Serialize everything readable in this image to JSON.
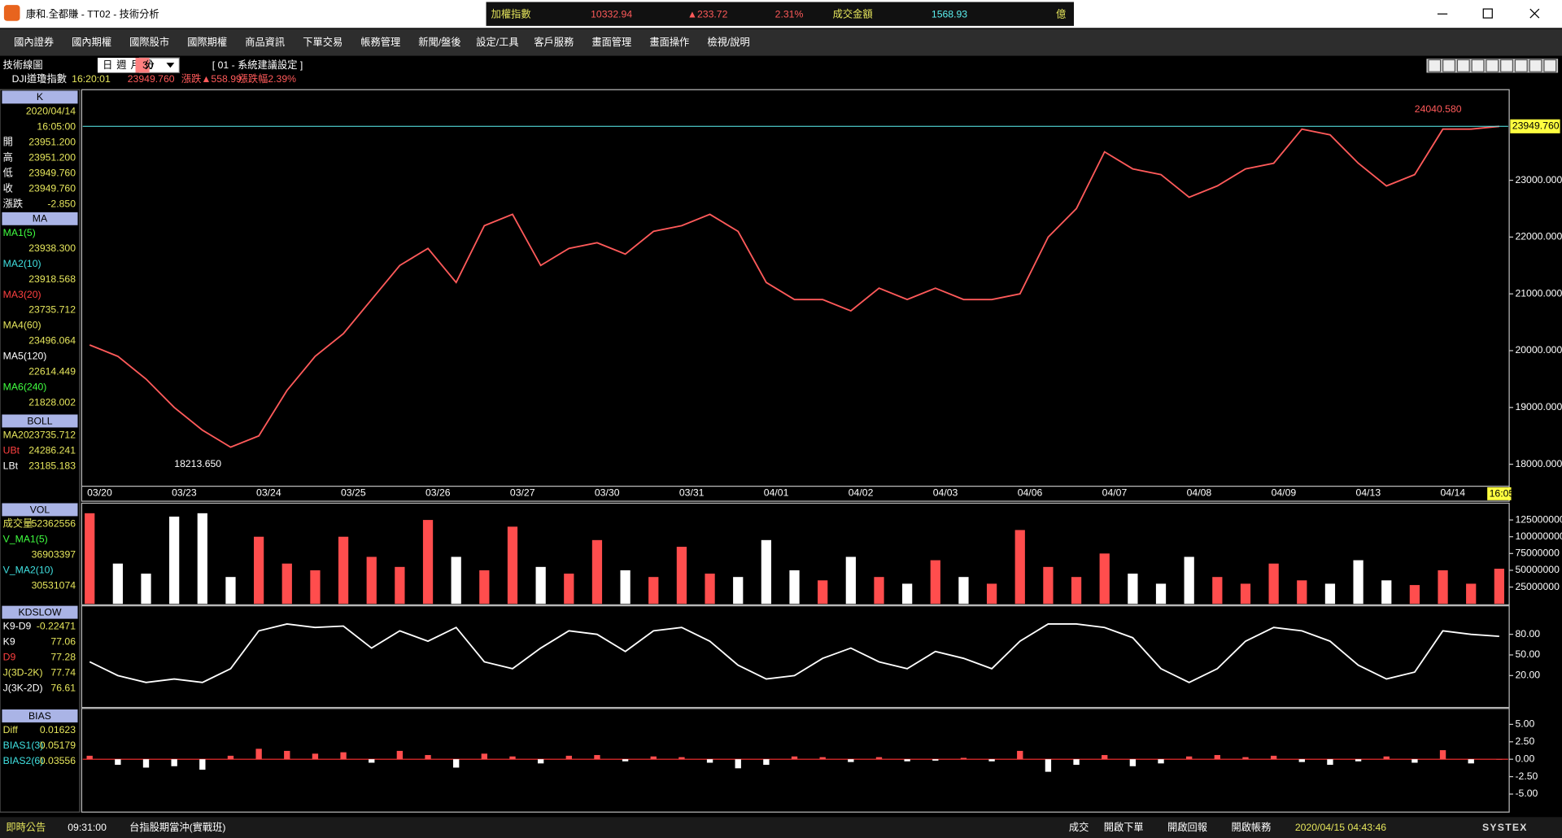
{
  "window": {
    "title": "康和.全都賺 - TT02 - 技術分析"
  },
  "ticker": {
    "name": "加權指數",
    "price": "10332.94",
    "change": "▲233.72",
    "pct": "2.31%",
    "turnover_label": "成交金額",
    "turnover": "1568.93",
    "unit": "億"
  },
  "menu": [
    "國內證券",
    "國內期權",
    "國際股市",
    "國際期權",
    "商品資訊",
    "下單交易",
    "帳務管理",
    "新聞/盤後",
    "設定/工具",
    "客戶服務",
    "畫面管理",
    "畫面操作",
    "檢視/說明"
  ],
  "toolbar": {
    "label": "技術線圖",
    "periods": [
      "日",
      "週",
      "月",
      "分"
    ],
    "interval": "30",
    "setting": "[ 01 - 系統建議設定 ]"
  },
  "quote": {
    "symbol": "DJI",
    "name": "道瓊指數",
    "time": "16:20:01",
    "price": "23949.760",
    "change": "漲跌▲558.99",
    "pct": "漲跌幅2.39%"
  },
  "sidebar": [
    {
      "title": "K",
      "rows": [
        {
          "value": "2020/04/14"
        },
        {
          "value": "16:05:00"
        },
        {
          "label": "開",
          "value": "23951.200"
        },
        {
          "label": "高",
          "value": "23951.200"
        },
        {
          "label": "低",
          "value": "23949.760"
        },
        {
          "label": "收",
          "value": "23949.760"
        },
        {
          "label": "漲跌",
          "value": "-2.850"
        }
      ]
    },
    {
      "title": "MA",
      "rows": [
        {
          "label": "MA1(5)",
          "value": "23938.300"
        },
        {
          "label": "MA2(10)",
          "value": "23918.568"
        },
        {
          "label": "MA3(20)",
          "value": "23735.712"
        },
        {
          "label": "MA4(60)",
          "value": "23496.064"
        },
        {
          "label": "MA5(120)",
          "value": "22614.449"
        },
        {
          "label": "MA6(240)",
          "value": "21828.002"
        }
      ]
    },
    {
      "title": "BOLL",
      "rows": [
        {
          "label": "MA20",
          "value": "23735.712"
        },
        {
          "label": "UBt",
          "value": "24286.241"
        },
        {
          "label": "LBt",
          "value": "23185.183"
        }
      ]
    },
    {
      "title": "VOL",
      "rows": [
        {
          "label": "成交量",
          "value": "52362556"
        },
        {
          "label": "V_MA1(5)",
          "value": "36903397"
        },
        {
          "label": "V_MA2(10)",
          "value": "30531074"
        }
      ]
    },
    {
      "title": "KDSLOW",
      "rows": [
        {
          "label": "K9-D9",
          "value": "-0.22471"
        },
        {
          "label": "K9",
          "value": "77.06"
        },
        {
          "label": "D9",
          "value": "77.28"
        },
        {
          "label": "J(3D-2K)",
          "value": "77.74"
        },
        {
          "label": "J(3K-2D)",
          "value": "76.61"
        }
      ]
    },
    {
      "title": "BIAS",
      "rows": [
        {
          "label": "Diff",
          "value": "0.01623"
        },
        {
          "label": "BIAS1(3)",
          "value": "0.05179"
        },
        {
          "label": "BIAS2(6)",
          "value": "0.03556"
        }
      ]
    }
  ],
  "status": {
    "left": [
      "即時公告",
      "09:31:00",
      "台指股期當沖(實戰班)"
    ],
    "right": [
      "成交",
      "開啟下單",
      "開啟回報",
      "開啟帳務"
    ],
    "datetime": "2020/04/15 04:43:46",
    "brand": "SYSTEX"
  },
  "chart_data": [
    {
      "type": "line",
      "color": "#ff5a5a",
      "categories": [
        "03/20",
        null,
        null,
        "03/23",
        null,
        null,
        "03/24",
        null,
        null,
        "03/25",
        null,
        null,
        "03/26",
        null,
        null,
        "03/27",
        null,
        null,
        "03/30",
        null,
        null,
        "03/31",
        null,
        null,
        "04/01",
        null,
        null,
        "04/02",
        null,
        null,
        "04/03",
        null,
        null,
        "04/06",
        null,
        null,
        "04/07",
        null,
        null,
        "04/08",
        null,
        null,
        "04/09",
        null,
        null,
        "04/13",
        null,
        null,
        "04/14",
        null,
        null
      ],
      "values": [
        20100,
        19900,
        19500,
        19000,
        18600,
        18300,
        18500,
        19300,
        19900,
        20300,
        20900,
        21500,
        21800,
        21200,
        22200,
        22400,
        21500,
        21800,
        21900,
        21700,
        22100,
        22200,
        22400,
        22100,
        21200,
        20900,
        20900,
        20700,
        21100,
        20900,
        21100,
        20900,
        20900,
        21000,
        22000,
        22500,
        23500,
        23200,
        23100,
        22700,
        22900,
        23200,
        23300,
        23900,
        23800,
        23300,
        22900,
        23100,
        23900,
        23900,
        23949.76
      ],
      "ylim": [
        17630,
        24560
      ],
      "yticks": [
        {
          "value": 18000,
          "label": "18000.000"
        },
        {
          "value": 19000,
          "label": "19000.000"
        },
        {
          "value": 20000,
          "label": "20000.000"
        },
        {
          "value": 21000,
          "label": "21000.000"
        },
        {
          "value": 22000,
          "label": "22000.000"
        },
        {
          "value": 23000,
          "label": "23000.000"
        }
      ],
      "high_label": "24040.580",
      "low_label": "18213.650",
      "last_label": "23949.760",
      "time_label": "16:05"
    },
    {
      "type": "bar",
      "values": [
        135000000,
        60000000,
        45000000,
        130000000,
        135000000,
        40000000,
        100000000,
        60000000,
        50000000,
        100000000,
        70000000,
        55000000,
        125000000,
        70000000,
        50000000,
        115000000,
        55000000,
        45000000,
        95000000,
        50000000,
        40000000,
        85000000,
        45000000,
        40000000,
        95000000,
        50000000,
        35000000,
        70000000,
        40000000,
        30000000,
        65000000,
        40000000,
        30000000,
        110000000,
        55000000,
        40000000,
        75000000,
        45000000,
        30000000,
        70000000,
        40000000,
        30000000,
        60000000,
        35000000,
        30000000,
        65000000,
        35000000,
        28000000,
        50000000,
        30000000,
        52362556
      ],
      "ylim": [
        0,
        147000000
      ],
      "yticks": [
        25000000,
        50000000,
        75000000,
        100000000,
        125000000
      ]
    },
    {
      "type": "line",
      "color": "#ffffff",
      "values": [
        40,
        20,
        10,
        15,
        10,
        30,
        85,
        95,
        90,
        92,
        60,
        85,
        70,
        90,
        40,
        30,
        60,
        85,
        80,
        55,
        85,
        90,
        70,
        35,
        15,
        20,
        45,
        60,
        40,
        30,
        55,
        45,
        30,
        70,
        95,
        95,
        90,
        75,
        30,
        10,
        30,
        70,
        90,
        85,
        70,
        35,
        15,
        25,
        85,
        80,
        77.06
      ],
      "ylim": [
        -25,
        120
      ],
      "yticks": [
        {
          "value": 20,
          "label": "20.00"
        },
        {
          "value": 50,
          "label": "50.00"
        },
        {
          "value": 80,
          "label": "80.00"
        }
      ]
    },
    {
      "type": "bar",
      "zero_line": true,
      "values": [
        0.5,
        -0.8,
        -1.2,
        -1.0,
        -1.5,
        0.5,
        1.5,
        1.2,
        0.8,
        1.0,
        -0.5,
        1.2,
        0.6,
        -1.2,
        0.8,
        0.4,
        -0.6,
        0.5,
        0.6,
        -0.3,
        0.4,
        0.3,
        -0.5,
        -1.3,
        -0.8,
        0.4,
        0.3,
        -0.4,
        0.3,
        -0.3,
        -0.2,
        0.2,
        -0.3,
        1.2,
        -1.8,
        -0.8,
        0.6,
        -1.0,
        -0.6,
        0.4,
        0.6,
        0.3,
        0.5,
        -0.4,
        -0.8,
        -0.3,
        0.4,
        -0.5,
        1.3,
        -0.6,
        0.01623
      ],
      "ylim": [
        -7.3,
        7
      ],
      "yticks": [
        {
          "value": -5,
          "label": "-5.00"
        },
        {
          "value": -2.5,
          "label": "-2.50"
        },
        {
          "value": 0,
          "label": "0.00"
        },
        {
          "value": 2.5,
          "label": "2.50"
        },
        {
          "value": 5,
          "label": "5.00"
        }
      ]
    }
  ]
}
